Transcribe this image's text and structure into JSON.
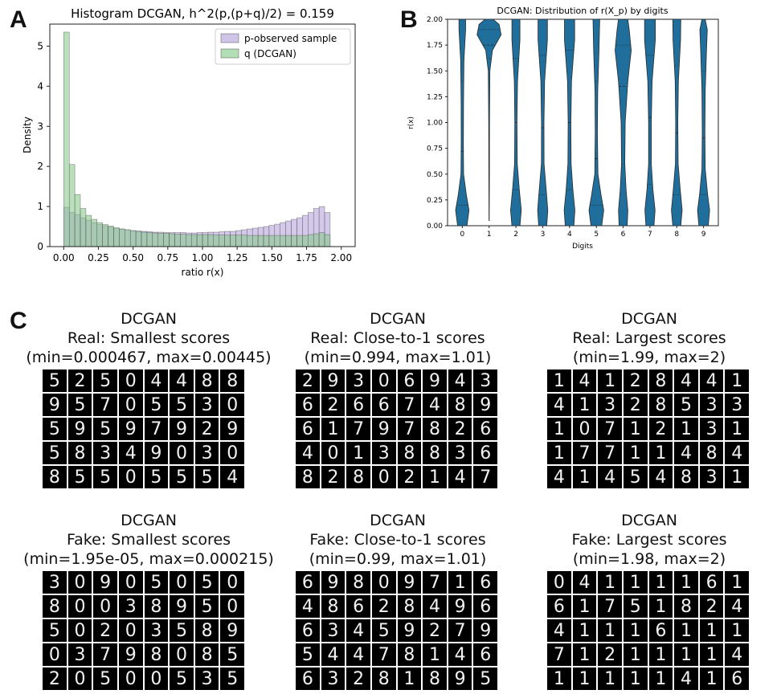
{
  "labels": {
    "a": "A",
    "b": "B",
    "c": "C"
  },
  "chart_data": [
    {
      "type": "bar",
      "title": "Histogram DCGAN, h^2(p,(p+q)/2) = 0.159",
      "xlabel": "ratio r(x)",
      "ylabel": "Density",
      "xlim": [
        -0.1,
        2.1
      ],
      "ylim": [
        0,
        5.55
      ],
      "xticks": [
        "0.00",
        "0.25",
        "0.50",
        "0.75",
        "1.00",
        "1.25",
        "1.50",
        "1.75",
        "2.00"
      ],
      "yticks": [
        "0",
        "1",
        "2",
        "3",
        "4",
        "5"
      ],
      "legend_position": "top-right",
      "bin_start": 0.0,
      "bin_width": 0.04,
      "series": [
        {
          "name": "p-observed sample",
          "color": "#b39ddb",
          "values": [
            0.98,
            0.85,
            0.8,
            0.72,
            0.66,
            0.6,
            0.55,
            0.52,
            0.49,
            0.46,
            0.44,
            0.42,
            0.4,
            0.39,
            0.38,
            0.37,
            0.36,
            0.36,
            0.35,
            0.35,
            0.35,
            0.35,
            0.34,
            0.34,
            0.35,
            0.35,
            0.36,
            0.36,
            0.37,
            0.38,
            0.38,
            0.4,
            0.42,
            0.44,
            0.46,
            0.48,
            0.5,
            0.53,
            0.56,
            0.6,
            0.64,
            0.68,
            0.72,
            0.78,
            0.85,
            0.95,
            1.0,
            0.85
          ]
        },
        {
          "name": "q (DCGAN)",
          "color": "#81c784",
          "values": [
            5.35,
            2.05,
            1.3,
            0.95,
            0.78,
            0.68,
            0.6,
            0.55,
            0.51,
            0.47,
            0.44,
            0.42,
            0.4,
            0.38,
            0.36,
            0.35,
            0.34,
            0.33,
            0.33,
            0.32,
            0.31,
            0.31,
            0.3,
            0.3,
            0.3,
            0.3,
            0.3,
            0.29,
            0.29,
            0.29,
            0.29,
            0.29,
            0.29,
            0.28,
            0.28,
            0.28,
            0.28,
            0.28,
            0.28,
            0.28,
            0.28,
            0.28,
            0.28,
            0.28,
            0.3,
            0.32,
            0.35,
            0.3
          ]
        }
      ]
    },
    {
      "type": "violin",
      "title": "DCGAN: Distribution of r(X_p) by digits",
      "xlabel": "Digits",
      "ylabel": "r(x)",
      "ylim": [
        0,
        2
      ],
      "categories": [
        "0",
        "1",
        "2",
        "3",
        "4",
        "5",
        "6",
        "7",
        "8",
        "9"
      ],
      "yticks": [
        "0.00",
        "0.25",
        "0.50",
        "0.75",
        "1.00",
        "1.25",
        "1.50",
        "1.75",
        "2.00"
      ],
      "color": "#1f6e9c",
      "series": [
        {
          "name": "0",
          "widths": [
            [
              0,
              0.35
            ],
            [
              0.15,
              0.5
            ],
            [
              0.3,
              0.3
            ],
            [
              0.5,
              0.1
            ],
            [
              0.8,
              0.08
            ],
            [
              1.2,
              0.09
            ],
            [
              1.6,
              0.12
            ],
            [
              1.9,
              0.25
            ],
            [
              2,
              0.25
            ]
          ],
          "quartiles": [
            0.2,
            0.72,
            1.4
          ]
        },
        {
          "name": "1",
          "widths": [
            [
              0.05,
              0.01
            ],
            [
              0.5,
              0.02
            ],
            [
              1.0,
              0.03
            ],
            [
              1.5,
              0.06
            ],
            [
              1.7,
              0.25
            ],
            [
              1.85,
              0.9
            ],
            [
              1.95,
              0.75
            ],
            [
              2,
              0.3
            ]
          ],
          "quartiles": [
            1.62,
            1.75,
            1.9
          ]
        },
        {
          "name": "2",
          "widths": [
            [
              0,
              0.3
            ],
            [
              0.15,
              0.4
            ],
            [
              0.35,
              0.25
            ],
            [
              0.6,
              0.1
            ],
            [
              1.0,
              0.08
            ],
            [
              1.4,
              0.12
            ],
            [
              1.8,
              0.3
            ],
            [
              2,
              0.3
            ]
          ],
          "quartiles": [
            0.35,
            1.0,
            1.62
          ]
        },
        {
          "name": "3",
          "widths": [
            [
              0,
              0.3
            ],
            [
              0.15,
              0.38
            ],
            [
              0.35,
              0.26
            ],
            [
              0.6,
              0.1
            ],
            [
              1.0,
              0.09
            ],
            [
              1.4,
              0.14
            ],
            [
              1.8,
              0.35
            ],
            [
              2,
              0.35
            ]
          ],
          "quartiles": [
            0.3,
            0.95,
            1.65
          ]
        },
        {
          "name": "4",
          "widths": [
            [
              0,
              0.32
            ],
            [
              0.15,
              0.4
            ],
            [
              0.35,
              0.25
            ],
            [
              0.6,
              0.12
            ],
            [
              1.0,
              0.1
            ],
            [
              1.4,
              0.15
            ],
            [
              1.8,
              0.38
            ],
            [
              2,
              0.38
            ]
          ],
          "quartiles": [
            0.35,
            1.0,
            1.7
          ]
        },
        {
          "name": "5",
          "widths": [
            [
              0,
              0.4
            ],
            [
              0.15,
              0.55
            ],
            [
              0.3,
              0.35
            ],
            [
              0.5,
              0.12
            ],
            [
              0.9,
              0.08
            ],
            [
              1.3,
              0.1
            ],
            [
              1.7,
              0.2
            ],
            [
              2,
              0.25
            ]
          ],
          "quartiles": [
            0.2,
            0.65,
            1.4
          ]
        },
        {
          "name": "6",
          "widths": [
            [
              0,
              0.3
            ],
            [
              0.15,
              0.35
            ],
            [
              0.35,
              0.22
            ],
            [
              0.6,
              0.12
            ],
            [
              1.0,
              0.15
            ],
            [
              1.4,
              0.35
            ],
            [
              1.7,
              0.6
            ],
            [
              1.9,
              0.45
            ],
            [
              2,
              0.35
            ]
          ],
          "quartiles": [
            0.6,
            1.35,
            1.75
          ]
        },
        {
          "name": "7",
          "widths": [
            [
              0,
              0.3
            ],
            [
              0.15,
              0.38
            ],
            [
              0.35,
              0.22
            ],
            [
              0.6,
              0.1
            ],
            [
              1.0,
              0.1
            ],
            [
              1.4,
              0.16
            ],
            [
              1.8,
              0.4
            ],
            [
              2,
              0.4
            ]
          ],
          "quartiles": [
            0.4,
            1.05,
            1.65
          ]
        },
        {
          "name": "8",
          "widths": [
            [
              0,
              0.3
            ],
            [
              0.15,
              0.4
            ],
            [
              0.35,
              0.26
            ],
            [
              0.6,
              0.1
            ],
            [
              1.0,
              0.08
            ],
            [
              1.4,
              0.12
            ],
            [
              1.8,
              0.28
            ],
            [
              2,
              0.3
            ]
          ],
          "quartiles": [
            0.3,
            0.9,
            1.55
          ]
        },
        {
          "name": "9",
          "widths": [
            [
              0,
              0.35
            ],
            [
              0.15,
              0.45
            ],
            [
              0.3,
              0.3
            ],
            [
              0.55,
              0.12
            ],
            [
              0.9,
              0.1
            ],
            [
              1.3,
              0.12
            ],
            [
              1.7,
              0.22
            ],
            [
              1.9,
              0.28
            ],
            [
              2,
              0.12
            ]
          ],
          "quartiles": [
            0.3,
            0.85,
            1.5
          ]
        }
      ]
    }
  ],
  "sample_grids": [
    {
      "title": "DCGAN",
      "subtitle": "Real: Smallest scores",
      "range": "(min=0.000467, max=0.00445)",
      "digits": [
        "5",
        "2",
        "5",
        "0",
        "4",
        "4",
        "8",
        "8",
        "9",
        "5",
        "7",
        "0",
        "5",
        "5",
        "3",
        "0",
        "5",
        "9",
        "5",
        "9",
        "7",
        "9",
        "2",
        "9",
        "5",
        "8",
        "3",
        "4",
        "9",
        "0",
        "3",
        "0",
        "8",
        "5",
        "5",
        "0",
        "5",
        "5",
        "5",
        "4"
      ]
    },
    {
      "title": "DCGAN",
      "subtitle": "Real: Close-to-1 scores",
      "range": "(min=0.994, max=1.01)",
      "digits": [
        "2",
        "9",
        "3",
        "0",
        "6",
        "9",
        "4",
        "3",
        "6",
        "2",
        "6",
        "6",
        "7",
        "4",
        "8",
        "9",
        "6",
        "1",
        "7",
        "9",
        "7",
        "8",
        "2",
        "6",
        "4",
        "0",
        "1",
        "3",
        "8",
        "8",
        "3",
        "6",
        "8",
        "2",
        "8",
        "0",
        "2",
        "1",
        "4",
        "7"
      ]
    },
    {
      "title": "DCGAN",
      "subtitle": "Real: Largest scores",
      "range": "(min=1.99, max=2)",
      "digits": [
        "1",
        "4",
        "1",
        "2",
        "8",
        "4",
        "4",
        "1",
        "4",
        "1",
        "3",
        "2",
        "8",
        "5",
        "3",
        "3",
        "1",
        "0",
        "7",
        "1",
        "2",
        "1",
        "3",
        "1",
        "1",
        "7",
        "7",
        "1",
        "1",
        "4",
        "8",
        "4",
        "4",
        "1",
        "4",
        "5",
        "4",
        "8",
        "3",
        "1"
      ]
    },
    {
      "title": "DCGAN",
      "subtitle": "Fake: Smallest scores",
      "range": "(min=1.95e-05, max=0.000215)",
      "digits": [
        "3",
        "0",
        "9",
        "0",
        "5",
        "0",
        "5",
        "0",
        "8",
        "0",
        "0",
        "3",
        "8",
        "9",
        "5",
        "0",
        "5",
        "0",
        "2",
        "0",
        "3",
        "5",
        "8",
        "9",
        "0",
        "3",
        "7",
        "9",
        "8",
        "0",
        "8",
        "5",
        "2",
        "0",
        "5",
        "0",
        "0",
        "5",
        "3",
        "5"
      ]
    },
    {
      "title": "DCGAN",
      "subtitle": "Fake: Close-to-1 scores",
      "range": "(min=0.99, max=1.01)",
      "digits": [
        "6",
        "9",
        "8",
        "0",
        "9",
        "7",
        "1",
        "6",
        "4",
        "8",
        "6",
        "2",
        "8",
        "4",
        "9",
        "6",
        "6",
        "3",
        "4",
        "5",
        "9",
        "2",
        "7",
        "9",
        "5",
        "4",
        "4",
        "7",
        "8",
        "1",
        "4",
        "6",
        "6",
        "3",
        "2",
        "8",
        "1",
        "8",
        "9",
        "5"
      ]
    },
    {
      "title": "DCGAN",
      "subtitle": "Fake: Largest scores",
      "range": "(min=1.98, max=2)",
      "digits": [
        "0",
        "4",
        "1",
        "1",
        "1",
        "1",
        "6",
        "1",
        "6",
        "1",
        "7",
        "5",
        "1",
        "8",
        "2",
        "4",
        "4",
        "1",
        "1",
        "1",
        "6",
        "1",
        "1",
        "1",
        "7",
        "1",
        "2",
        "1",
        "1",
        "1",
        "1",
        "4",
        "1",
        "1",
        "1",
        "1",
        "1",
        "4",
        "1",
        "6"
      ]
    }
  ]
}
